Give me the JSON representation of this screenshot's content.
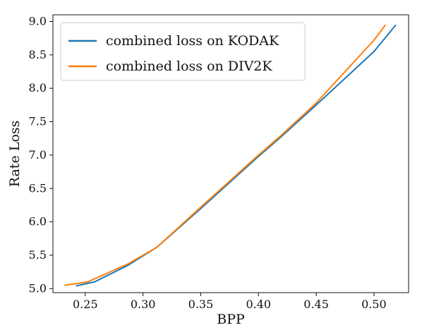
{
  "chart_data": {
    "type": "line",
    "xlabel": "BPP",
    "ylabel": "Rate Loss",
    "xlim": [
      0.222,
      0.53
    ],
    "ylim": [
      4.94,
      9.1
    ],
    "x_ticks": [
      0.25,
      0.3,
      0.35,
      0.4,
      0.45,
      0.5
    ],
    "x_tick_labels": [
      "0.25",
      "0.30",
      "0.35",
      "0.40",
      "0.45",
      "0.50"
    ],
    "y_ticks": [
      5.0,
      5.5,
      6.0,
      6.5,
      7.0,
      7.5,
      8.0,
      8.5,
      9.0
    ],
    "y_tick_labels": [
      "5.0",
      "5.5",
      "6.0",
      "6.5",
      "7.0",
      "7.5",
      "8.0",
      "8.5",
      "9.0"
    ],
    "grid": false,
    "legend_position": "top-left",
    "series": [
      {
        "name": "combined loss on KODAK",
        "color": "#1f77b4",
        "points": [
          {
            "x": 0.242,
            "y": 5.04
          },
          {
            "x": 0.258,
            "y": 5.1
          },
          {
            "x": 0.287,
            "y": 5.35
          },
          {
            "x": 0.312,
            "y": 5.62
          },
          {
            "x": 0.35,
            "y": 6.2
          },
          {
            "x": 0.4,
            "y": 6.98
          },
          {
            "x": 0.42,
            "y": 7.28
          },
          {
            "x": 0.45,
            "y": 7.75
          },
          {
            "x": 0.5,
            "y": 8.55
          },
          {
            "x": 0.519,
            "y": 8.95
          }
        ]
      },
      {
        "name": "combined loss on DIV2K",
        "color": "#ff7f0e",
        "points": [
          {
            "x": 0.232,
            "y": 5.05
          },
          {
            "x": 0.252,
            "y": 5.1
          },
          {
            "x": 0.287,
            "y": 5.37
          },
          {
            "x": 0.312,
            "y": 5.62
          },
          {
            "x": 0.35,
            "y": 6.22
          },
          {
            "x": 0.4,
            "y": 7.0
          },
          {
            "x": 0.42,
            "y": 7.3
          },
          {
            "x": 0.45,
            "y": 7.78
          },
          {
            "x": 0.5,
            "y": 8.72
          },
          {
            "x": 0.51,
            "y": 8.95
          }
        ]
      }
    ]
  }
}
